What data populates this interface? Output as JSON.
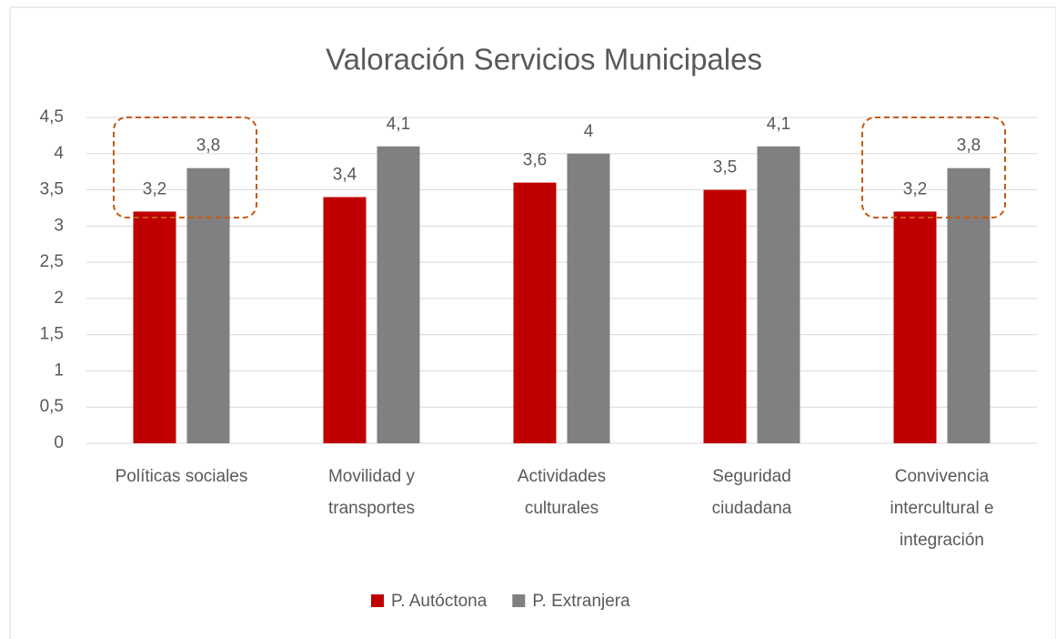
{
  "chart_data": {
    "type": "bar",
    "title": "Valoración Servicios Municipales",
    "categories": [
      "Políticas sociales",
      "Movilidad y transportes",
      "Actividades culturales",
      "Seguridad ciudadana",
      "Convivencia intercultural e integración"
    ],
    "series": [
      {
        "name": "P. Autóctona",
        "color": "#c00000",
        "values": [
          3.2,
          3.4,
          3.6,
          3.5,
          3.2
        ],
        "value_labels": [
          "3,2",
          "3,4",
          "3,6",
          "3,5",
          "3,2"
        ]
      },
      {
        "name": "P. Extranjera",
        "color": "#808080",
        "values": [
          3.8,
          4.1,
          4,
          4.1,
          3.8
        ],
        "value_labels": [
          "3,8",
          "4,1",
          "4",
          "4,1",
          "3,8"
        ]
      }
    ],
    "ylim": [
      0,
      4.5
    ],
    "yticks": [
      0,
      {
        "value": 0.5,
        "label": "0,5"
      },
      1,
      {
        "value": 1.5,
        "label": "1,5"
      },
      2,
      {
        "value": 2.5,
        "label": "2,5"
      },
      3,
      {
        "value": 3.5,
        "label": "3,5"
      },
      4,
      {
        "value": 4.5,
        "label": "4,5"
      }
    ],
    "grid": true,
    "legend": "bottom"
  }
}
